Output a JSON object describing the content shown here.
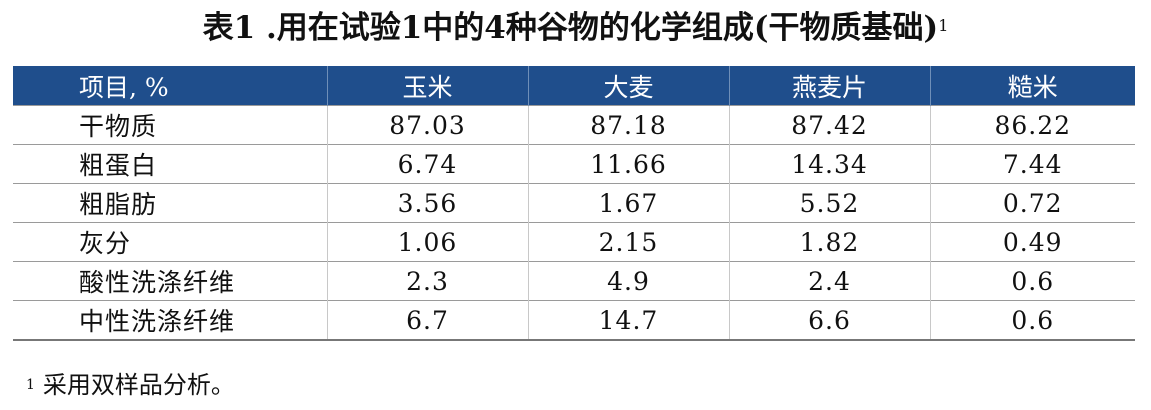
{
  "title": "表1 .用在试验1中的4种谷物的化学组成(干物质基础)",
  "title_superscript": "1",
  "table": {
    "header": [
      "项目, %",
      "玉米",
      "大麦",
      "燕麦片",
      "糙米"
    ],
    "rows": [
      [
        "干物质",
        "87.03",
        "87.18",
        "87.42",
        "86.22"
      ],
      [
        "粗蛋白",
        "6.74",
        "11.66",
        "14.34",
        "7.44"
      ],
      [
        "粗脂肪",
        "3.56",
        "1.67",
        "5.52",
        "0.72"
      ],
      [
        "灰分",
        "1.06",
        "2.15",
        "1.82",
        "0.49"
      ],
      [
        "酸性洗涤纤维",
        "2.3",
        "4.9",
        "2.4",
        "0.6"
      ],
      [
        "中性洗涤纤维",
        "6.7",
        "14.7",
        "6.6",
        "0.6"
      ]
    ]
  },
  "footnote": {
    "marker": "1",
    "text": "采用双样品分析。"
  }
}
